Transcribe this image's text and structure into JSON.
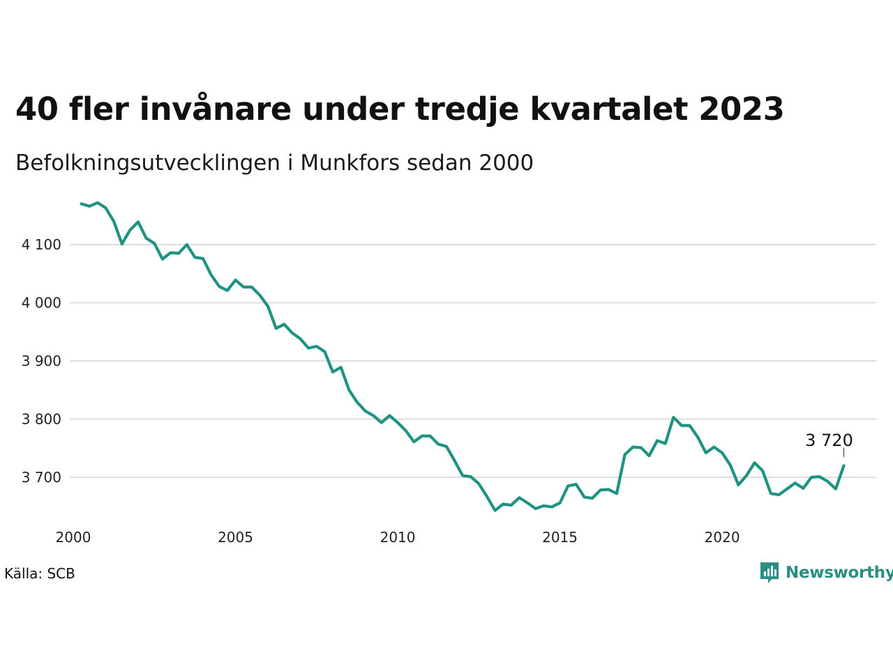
{
  "title": "40 fler invånare under tredje kvartalet 2023",
  "subtitle": "Befolkningsutvecklingen i Munkfors sedan 2000",
  "source": "Källa: SCB",
  "brand": {
    "name": "Newsworthy",
    "icon": "newsworthy-logo-icon",
    "color": "#2a8f82"
  },
  "chart_data": {
    "type": "line",
    "line_color": "#1f9282",
    "grid": true,
    "y_ticks": [
      3700,
      3800,
      3900,
      4000,
      4100
    ],
    "y_tick_labels": [
      "3 700",
      "3 800",
      "3 900",
      "4 000",
      "4 100"
    ],
    "x_ticks": [
      2000,
      2005,
      2010,
      2015,
      2020
    ],
    "x_tick_labels": [
      "2000",
      "2005",
      "2010",
      "2015",
      "2020"
    ],
    "xlim": [
      2000,
      2024.75
    ],
    "ylim": [
      3610,
      4185
    ],
    "end_label": "3 720",
    "x": [
      2000.25,
      2000.5,
      2000.75,
      2001.0,
      2001.25,
      2001.5,
      2001.75,
      2002.0,
      2002.25,
      2002.5,
      2002.75,
      2003.0,
      2003.25,
      2003.5,
      2003.75,
      2004.0,
      2004.25,
      2004.5,
      2004.75,
      2005.0,
      2005.25,
      2005.5,
      2005.75,
      2006.0,
      2006.25,
      2006.5,
      2006.75,
      2007.0,
      2007.25,
      2007.5,
      2007.75,
      2008.0,
      2008.25,
      2008.5,
      2008.75,
      2009.0,
      2009.25,
      2009.5,
      2009.75,
      2010.0,
      2010.25,
      2010.5,
      2010.75,
      2011.0,
      2011.25,
      2011.5,
      2011.75,
      2012.0,
      2012.25,
      2012.5,
      2012.75,
      2013.0,
      2013.25,
      2013.5,
      2013.75,
      2014.0,
      2014.25,
      2014.5,
      2014.75,
      2015.0,
      2015.25,
      2015.5,
      2015.75,
      2016.0,
      2016.25,
      2016.5,
      2016.75,
      2017.0,
      2017.25,
      2017.5,
      2017.75,
      2018.0,
      2018.25,
      2018.5,
      2018.75,
      2019.0,
      2019.25,
      2019.5,
      2019.75,
      2020.0,
      2020.25,
      2020.5,
      2020.75,
      2021.0,
      2021.25,
      2021.5,
      2021.75,
      2022.0,
      2022.25,
      2022.5,
      2022.75,
      2023.0,
      2023.25,
      2023.5,
      2023.75
    ],
    "values": [
      4170,
      4166,
      4172,
      4163,
      4140,
      4101,
      4125,
      4139,
      4111,
      4102,
      4075,
      4086,
      4085,
      4100,
      4078,
      4076,
      4048,
      4028,
      4021,
      4039,
      4027,
      4027,
      4013,
      3994,
      3956,
      3963,
      3948,
      3938,
      3922,
      3925,
      3916,
      3881,
      3889,
      3850,
      3829,
      3814,
      3806,
      3794,
      3806,
      3794,
      3780,
      3761,
      3771,
      3771,
      3757,
      3753,
      3729,
      3703,
      3701,
      3689,
      3667,
      3643,
      3654,
      3652,
      3665,
      3656,
      3646,
      3651,
      3649,
      3656,
      3685,
      3688,
      3666,
      3664,
      3678,
      3679,
      3672,
      3739,
      3752,
      3751,
      3737,
      3763,
      3758,
      3803,
      3789,
      3789,
      3769,
      3742,
      3752,
      3742,
      3721,
      3687,
      3703,
      3725,
      3711,
      3672,
      3670,
      3680,
      3690,
      3681,
      3700,
      3701,
      3693,
      3680,
      3720
    ]
  }
}
